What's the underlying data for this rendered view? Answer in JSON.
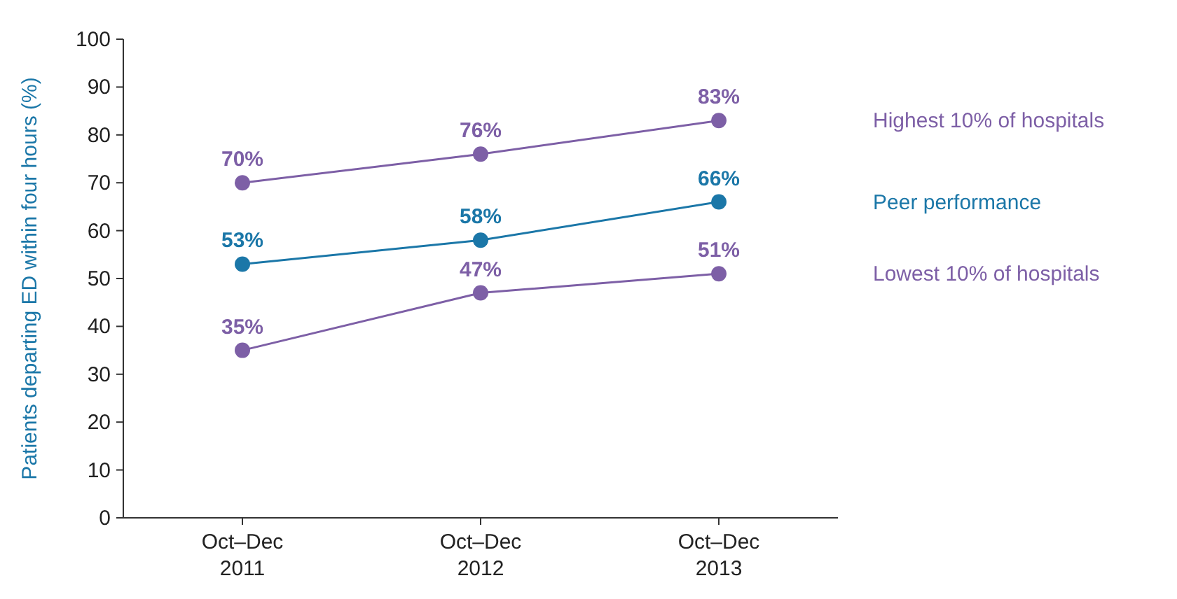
{
  "chart_data": {
    "type": "line",
    "ylabel": "Patients departing ED within four hours (%)",
    "categories": [
      "Oct–Dec 2011",
      "Oct–Dec 2012",
      "Oct–Dec 2013"
    ],
    "series": [
      {
        "name": "Highest 10% of hospitals",
        "color": "#7d5fa6",
        "values": [
          70,
          76,
          83
        ],
        "value_labels": [
          "70%",
          "76%",
          "83%"
        ]
      },
      {
        "name": "Peer performance",
        "color": "#1b77a8",
        "values": [
          53,
          58,
          66
        ],
        "value_labels": [
          "53%",
          "58%",
          "66%"
        ]
      },
      {
        "name": "Lowest 10% of hospitals",
        "color": "#7d5fa6",
        "values": [
          35,
          47,
          51
        ],
        "value_labels": [
          "35%",
          "47%",
          "51%"
        ]
      }
    ],
    "ylim": [
      0,
      100
    ],
    "yticks": [
      0,
      10,
      20,
      30,
      40,
      50,
      60,
      70,
      80,
      90,
      100
    ],
    "grid": false,
    "legend": false,
    "marker": "circle",
    "line_style": "solid"
  }
}
